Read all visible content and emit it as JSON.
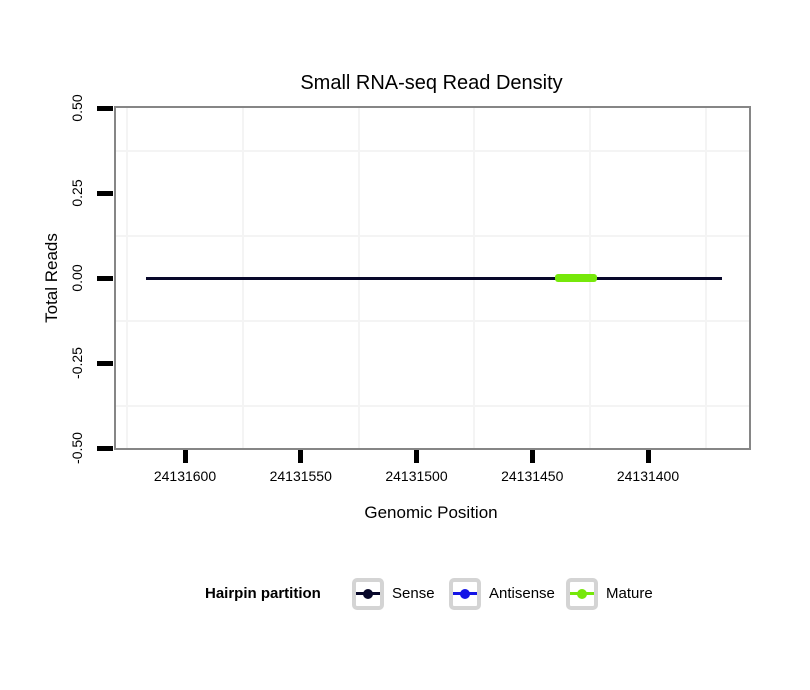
{
  "title": "Small RNA-seq Read Density",
  "x_axis": {
    "label": "Genomic Position",
    "ticks": [
      "24131600",
      "24131550",
      "24131500",
      "24131450",
      "24131400"
    ]
  },
  "y_axis": {
    "label": "Total Reads",
    "ticks": [
      "0.50",
      "0.25",
      "0.00",
      "-0.25",
      "-0.50"
    ]
  },
  "legend": {
    "title": "Hairpin partition",
    "items": [
      {
        "label": "Sense",
        "color": "#08082a"
      },
      {
        "label": "Antisense",
        "color": "#1414e6"
      },
      {
        "label": "Mature",
        "color": "#76e80a"
      }
    ]
  },
  "colors": {
    "panel_border": "#868686",
    "grid_minor": "#f4f4f4",
    "tick": "#000000"
  },
  "chart_data": {
    "type": "line",
    "title": "Small RNA-seq Read Density",
    "xlabel": "Genomic Position",
    "ylabel": "Total Reads",
    "x_ticks": [
      24131600,
      24131550,
      24131500,
      24131450,
      24131400
    ],
    "x_axis_reversed": true,
    "xlim": [
      24131631,
      24131356
    ],
    "ylim": [
      -0.5,
      0.5
    ],
    "y_ticks": [
      0.5,
      0.25,
      0.0,
      -0.25,
      -0.5
    ],
    "grid": "minor gridlines only, light gray, white panel",
    "legend_title": "Hairpin partition",
    "legend_position": "bottom",
    "series": [
      {
        "name": "Sense",
        "color": "#08082a",
        "y": 0,
        "x_start": 24131617,
        "x_end": 24131368,
        "thickness_px": 3,
        "visible": true
      },
      {
        "name": "Antisense",
        "color": "#1414e6",
        "y": null,
        "x_start": null,
        "x_end": null,
        "thickness_px": 3,
        "visible": false
      },
      {
        "name": "Mature",
        "color": "#76e80a",
        "y": 0,
        "x_start": 24131440,
        "x_end": 24131422,
        "thickness_px": 8,
        "visible": true
      }
    ]
  }
}
